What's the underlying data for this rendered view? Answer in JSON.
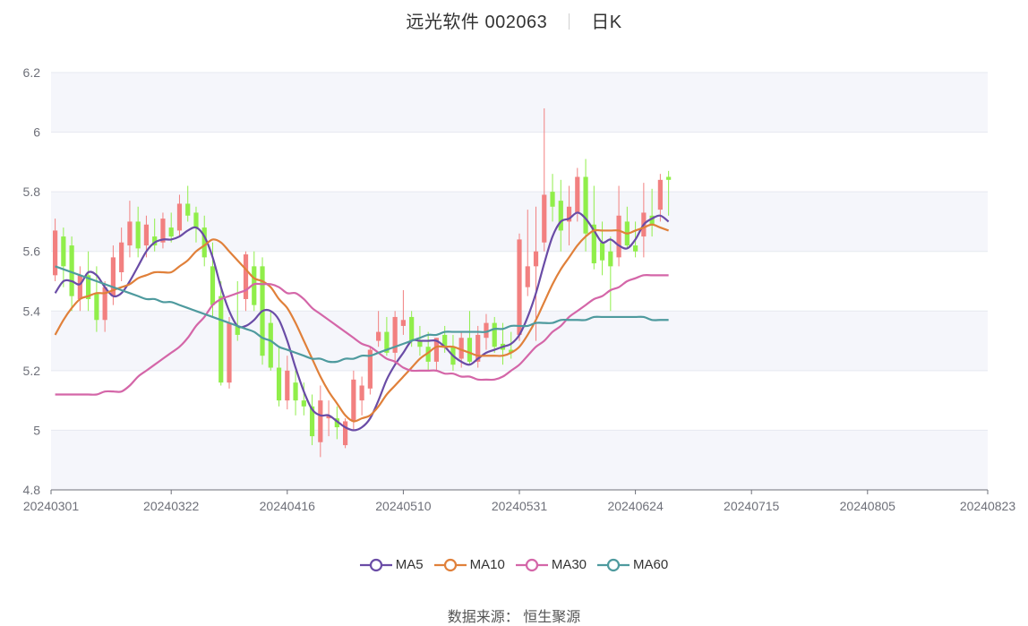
{
  "header": {
    "stock": "远光软件 002063",
    "period": "日K"
  },
  "source": "数据来源： 恒生聚源",
  "colors": {
    "up": "#f28080",
    "down": "#90ee4a",
    "grid": "#e6e9f0",
    "band": "#f5f6fb",
    "axis": "#6e7079"
  },
  "chart_data": {
    "type": "candlestick",
    "title": "远光软件 002063 日K",
    "ylim": [
      4.8,
      6.2
    ],
    "yticks": [
      "4.8",
      "5",
      "5.2",
      "5.4",
      "5.6",
      "5.8",
      "6",
      "6.2"
    ],
    "xtick_labels": [
      {
        "index": 0,
        "label": "20240301"
      },
      {
        "index": 14,
        "label": "20240322"
      },
      {
        "index": 28,
        "label": "20240416"
      },
      {
        "index": 42,
        "label": "20240510"
      },
      {
        "index": 56,
        "label": "20240531"
      },
      {
        "index": 70,
        "label": "20240624"
      },
      {
        "index": 84,
        "label": "20240715"
      },
      {
        "index": 98,
        "label": "20240805"
      },
      {
        "index": 112,
        "label": "20240823"
      }
    ],
    "grid": true,
    "legend_position": "bottom",
    "candles_ohlc": [
      [
        5.52,
        5.71,
        5.5,
        5.67
      ],
      [
        5.65,
        5.68,
        5.48,
        5.55
      ],
      [
        5.62,
        5.65,
        5.4,
        5.45
      ],
      [
        5.44,
        5.55,
        5.4,
        5.52
      ],
      [
        5.52,
        5.6,
        5.4,
        5.44
      ],
      [
        5.46,
        5.55,
        5.33,
        5.37
      ],
      [
        5.37,
        5.5,
        5.33,
        5.48
      ],
      [
        5.45,
        5.62,
        5.42,
        5.58
      ],
      [
        5.53,
        5.68,
        5.5,
        5.63
      ],
      [
        5.62,
        5.77,
        5.58,
        5.7
      ],
      [
        5.7,
        5.75,
        5.58,
        5.61
      ],
      [
        5.62,
        5.72,
        5.58,
        5.69
      ],
      [
        5.65,
        5.71,
        5.6,
        5.62
      ],
      [
        5.63,
        5.73,
        5.61,
        5.71
      ],
      [
        5.68,
        5.73,
        5.63,
        5.65
      ],
      [
        5.67,
        5.79,
        5.65,
        5.76
      ],
      [
        5.76,
        5.82,
        5.7,
        5.72
      ],
      [
        5.73,
        5.75,
        5.63,
        5.68
      ],
      [
        5.68,
        5.72,
        5.55,
        5.58
      ],
      [
        5.55,
        5.63,
        5.38,
        5.42
      ],
      [
        5.45,
        5.5,
        5.15,
        5.16
      ],
      [
        5.16,
        5.38,
        5.14,
        5.36
      ],
      [
        5.35,
        5.5,
        5.3,
        5.32
      ],
      [
        5.44,
        5.6,
        5.4,
        5.59
      ],
      [
        5.55,
        5.6,
        5.4,
        5.42
      ],
      [
        5.55,
        5.58,
        5.22,
        5.25
      ],
      [
        5.36,
        5.4,
        5.2,
        5.21
      ],
      [
        5.21,
        5.28,
        5.08,
        5.1
      ],
      [
        5.1,
        5.25,
        5.07,
        5.2
      ],
      [
        5.16,
        5.2,
        5.05,
        5.1
      ],
      [
        5.1,
        5.16,
        5.05,
        5.08
      ],
      [
        5.08,
        5.12,
        4.95,
        4.98
      ],
      [
        4.96,
        5.15,
        4.91,
        5.1
      ],
      [
        5.04,
        5.1,
        4.98,
        5.05
      ],
      [
        5.04,
        5.08,
        4.97,
        5.01
      ],
      [
        4.95,
        5.04,
        4.94,
        5.03
      ],
      [
        5.03,
        5.2,
        5.0,
        5.17
      ],
      [
        5.1,
        5.18,
        5.05,
        5.15
      ],
      [
        5.14,
        5.28,
        5.12,
        5.27
      ],
      [
        5.3,
        5.4,
        5.28,
        5.33
      ],
      [
        5.33,
        5.38,
        5.25,
        5.26
      ],
      [
        5.26,
        5.4,
        5.22,
        5.38
      ],
      [
        5.35,
        5.47,
        5.32,
        5.37
      ],
      [
        5.38,
        5.4,
        5.28,
        5.3
      ],
      [
        5.3,
        5.35,
        5.25,
        5.28
      ],
      [
        5.28,
        5.33,
        5.2,
        5.23
      ],
      [
        5.23,
        5.31,
        5.2,
        5.31
      ],
      [
        5.32,
        5.35,
        5.26,
        5.28
      ],
      [
        5.28,
        5.32,
        5.2,
        5.22
      ],
      [
        5.24,
        5.33,
        5.21,
        5.31
      ],
      [
        5.31,
        5.4,
        5.22,
        5.23
      ],
      [
        5.23,
        5.35,
        5.21,
        5.32
      ],
      [
        5.31,
        5.39,
        5.27,
        5.36
      ],
      [
        5.36,
        5.38,
        5.26,
        5.28
      ],
      [
        5.29,
        5.36,
        5.22,
        5.27
      ],
      [
        5.27,
        5.33,
        5.24,
        5.26
      ],
      [
        5.32,
        5.66,
        5.3,
        5.64
      ],
      [
        5.48,
        5.74,
        5.45,
        5.55
      ],
      [
        5.55,
        5.75,
        5.3,
        5.6
      ],
      [
        5.63,
        6.08,
        5.6,
        5.79
      ],
      [
        5.8,
        5.86,
        5.7,
        5.75
      ],
      [
        5.77,
        5.84,
        5.6,
        5.67
      ],
      [
        5.7,
        5.82,
        5.62,
        5.75
      ],
      [
        5.73,
        5.88,
        5.7,
        5.85
      ],
      [
        5.85,
        5.91,
        5.6,
        5.66
      ],
      [
        5.69,
        5.82,
        5.54,
        5.56
      ],
      [
        5.63,
        5.7,
        5.52,
        5.57
      ],
      [
        5.6,
        5.65,
        5.4,
        5.55
      ],
      [
        5.58,
        5.82,
        5.55,
        5.72
      ],
      [
        5.7,
        5.75,
        5.61,
        5.62
      ],
      [
        5.62,
        5.7,
        5.58,
        5.6
      ],
      [
        5.65,
        5.83,
        5.58,
        5.73
      ],
      [
        5.72,
        5.81,
        5.65,
        5.69
      ],
      [
        5.74,
        5.86,
        5.7,
        5.84
      ],
      [
        5.85,
        5.87,
        5.72,
        5.84
      ]
    ],
    "series": [
      {
        "name": "MA5",
        "color": "#6a4ca6",
        "values": [
          5.46,
          5.5,
          5.5,
          5.49,
          5.53,
          5.52,
          5.48,
          5.45,
          5.46,
          5.5,
          5.55,
          5.6,
          5.63,
          5.64,
          5.64,
          5.65,
          5.67,
          5.68,
          5.65,
          5.58,
          5.48,
          5.4,
          5.35,
          5.35,
          5.37,
          5.4,
          5.4,
          5.37,
          5.3,
          5.21,
          5.13,
          5.07,
          5.05,
          5.05,
          5.03,
          5.01,
          5.0,
          5.01,
          5.04,
          5.1,
          5.17,
          5.22,
          5.26,
          5.3,
          5.3,
          5.3,
          5.3,
          5.28,
          5.25,
          5.23,
          5.22,
          5.24,
          5.26,
          5.27,
          5.28,
          5.29,
          5.32,
          5.38,
          5.46,
          5.56,
          5.65,
          5.7,
          5.71,
          5.73,
          5.71,
          5.67,
          5.63,
          5.64,
          5.62,
          5.61,
          5.64,
          5.69,
          5.71,
          5.72,
          5.7
        ]
      },
      {
        "name": "MA10",
        "color": "#e0803a",
        "values": [
          5.32,
          5.37,
          5.41,
          5.44,
          5.45,
          5.46,
          5.46,
          5.47,
          5.48,
          5.49,
          5.51,
          5.52,
          5.53,
          5.53,
          5.53,
          5.55,
          5.57,
          5.6,
          5.62,
          5.64,
          5.63,
          5.6,
          5.57,
          5.54,
          5.51,
          5.5,
          5.48,
          5.44,
          5.41,
          5.36,
          5.3,
          5.24,
          5.18,
          5.13,
          5.09,
          5.05,
          5.03,
          5.04,
          5.05,
          5.08,
          5.12,
          5.15,
          5.18,
          5.21,
          5.24,
          5.26,
          5.28,
          5.28,
          5.28,
          5.27,
          5.26,
          5.25,
          5.25,
          5.25,
          5.25,
          5.26,
          5.28,
          5.32,
          5.37,
          5.43,
          5.49,
          5.54,
          5.58,
          5.62,
          5.65,
          5.67,
          5.67,
          5.67,
          5.67,
          5.66,
          5.67,
          5.68,
          5.69,
          5.68,
          5.67
        ]
      },
      {
        "name": "MA30",
        "color": "#d466a8",
        "values": [
          5.12,
          5.12,
          5.12,
          5.12,
          5.12,
          5.12,
          5.13,
          5.13,
          5.13,
          5.15,
          5.18,
          5.2,
          5.22,
          5.24,
          5.26,
          5.28,
          5.31,
          5.35,
          5.38,
          5.42,
          5.44,
          5.45,
          5.46,
          5.47,
          5.49,
          5.49,
          5.49,
          5.48,
          5.46,
          5.46,
          5.44,
          5.41,
          5.39,
          5.37,
          5.35,
          5.33,
          5.31,
          5.29,
          5.28,
          5.26,
          5.24,
          5.23,
          5.21,
          5.2,
          5.2,
          5.2,
          5.2,
          5.19,
          5.19,
          5.18,
          5.18,
          5.17,
          5.17,
          5.17,
          5.18,
          5.2,
          5.22,
          5.25,
          5.28,
          5.3,
          5.33,
          5.35,
          5.38,
          5.4,
          5.42,
          5.44,
          5.45,
          5.47,
          5.48,
          5.5,
          5.51,
          5.52,
          5.52,
          5.52,
          5.52
        ]
      },
      {
        "name": "MA60",
        "color": "#4e9a9e",
        "values": [
          5.55,
          5.54,
          5.53,
          5.52,
          5.51,
          5.5,
          5.49,
          5.48,
          5.47,
          5.46,
          5.45,
          5.44,
          5.44,
          5.43,
          5.43,
          5.42,
          5.41,
          5.4,
          5.39,
          5.38,
          5.37,
          5.36,
          5.35,
          5.34,
          5.33,
          5.31,
          5.3,
          5.28,
          5.27,
          5.26,
          5.25,
          5.24,
          5.24,
          5.23,
          5.23,
          5.24,
          5.24,
          5.25,
          5.25,
          5.26,
          5.27,
          5.28,
          5.29,
          5.3,
          5.31,
          5.32,
          5.32,
          5.33,
          5.33,
          5.33,
          5.33,
          5.33,
          5.33,
          5.34,
          5.34,
          5.35,
          5.35,
          5.35,
          5.36,
          5.36,
          5.36,
          5.37,
          5.37,
          5.37,
          5.37,
          5.38,
          5.38,
          5.38,
          5.38,
          5.38,
          5.38,
          5.38,
          5.37,
          5.37,
          5.37
        ]
      }
    ]
  }
}
